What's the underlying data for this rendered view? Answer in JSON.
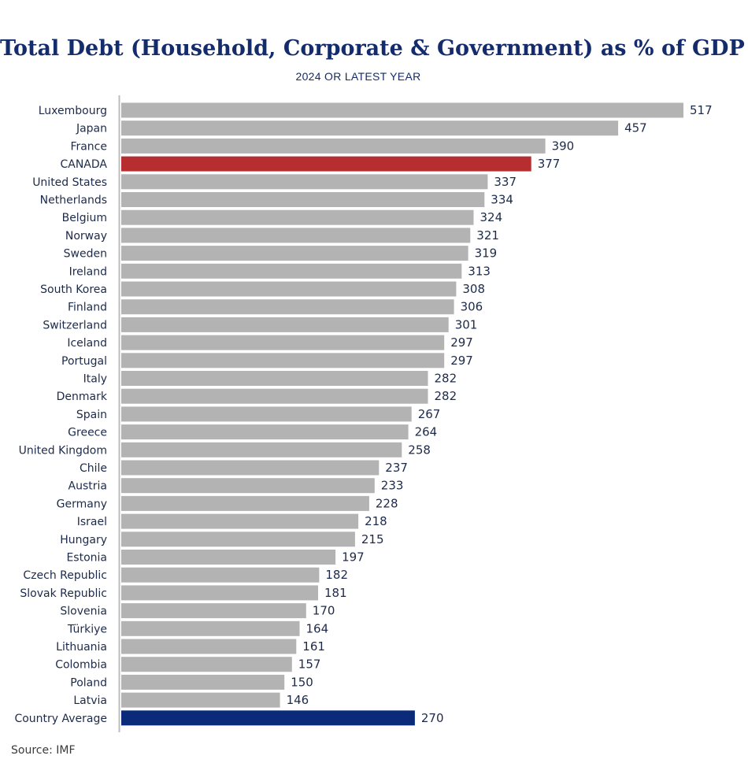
{
  "chart_data": {
    "type": "bar",
    "orientation": "horizontal",
    "title": "Total Debt (Household, Corporate & Government) as % of GDP",
    "subtitle": "2024 OR LATEST YEAR",
    "xlabel": "",
    "ylabel": "",
    "xlim": [
      0,
      517
    ],
    "grid": false,
    "legend": "none",
    "colors": {
      "default": "#b3b3b3",
      "highlight": "#b72e31",
      "average": "#0b2b7a",
      "text": "#1c2a4a",
      "title": "#142c6b",
      "axis": "#bcbcbc"
    },
    "categories": [
      "Luxembourg",
      "Japan",
      "France",
      "CANADA",
      "United States",
      "Netherlands",
      "Belgium",
      "Norway",
      "Sweden",
      "Ireland",
      "South Korea",
      "Finland",
      "Switzerland",
      "Iceland",
      "Portugal",
      "Italy",
      "Denmark",
      "Spain",
      "Greece",
      "United Kingdom",
      "Chile",
      "Austria",
      "Germany",
      "Israel",
      "Hungary",
      "Estonia",
      "Czech Republic",
      "Slovak Republic",
      "Slovenia",
      "Türkiye",
      "Lithuania",
      "Colombia",
      "Poland",
      "Latvia",
      "Country Average"
    ],
    "values": [
      517,
      457,
      390,
      377,
      337,
      334,
      324,
      321,
      319,
      313,
      308,
      306,
      301,
      297,
      297,
      282,
      282,
      267,
      264,
      258,
      237,
      233,
      228,
      218,
      215,
      197,
      182,
      181,
      170,
      164,
      161,
      157,
      150,
      146,
      270
    ],
    "highlight": "CANADA",
    "average_label": "Country Average"
  },
  "source": "Source: IMF"
}
